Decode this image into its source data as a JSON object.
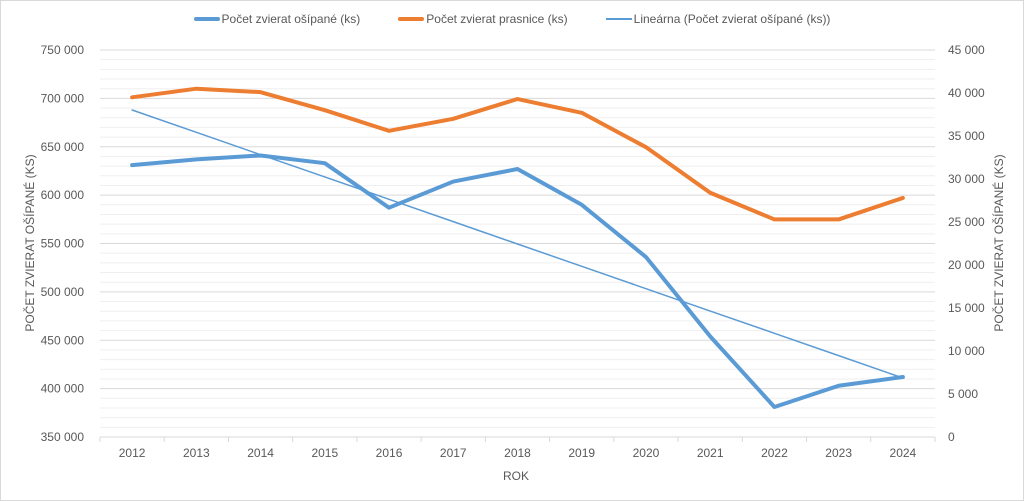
{
  "chart_data": {
    "type": "line",
    "title": "",
    "categories": [
      "2012",
      "2013",
      "2014",
      "2015",
      "2016",
      "2017",
      "2018",
      "2019",
      "2020",
      "2021",
      "2022",
      "2023",
      "2024"
    ],
    "xlabel": "ROK",
    "ylabel_left": "POČET ZVIERAT OŠÍPANÉ (KS)",
    "ylabel_right": "POČET ZVIERAT OŠÍPANÉ (KS)",
    "ylim_left": [
      350000,
      750000
    ],
    "ylim_right": [
      0,
      45000
    ],
    "yticks_left": [
      "350 000",
      "400 000",
      "450 000",
      "500 000",
      "550 000",
      "600 000",
      "650 000",
      "700 000",
      "750 000"
    ],
    "yticks_right": [
      "0",
      "5 000",
      "10 000",
      "15 000",
      "20 000",
      "25 000",
      "30 000",
      "35 000",
      "40 000",
      "45 000"
    ],
    "grid": true,
    "legend_position": "top",
    "series": [
      {
        "name": "Počet zvierat ošípané (ks)",
        "axis": "left",
        "color": "#5b9bd5",
        "values": [
          631000,
          637000,
          641000,
          633000,
          587000,
          614000,
          627000,
          590000,
          536000,
          454000,
          381000,
          403000,
          412000
        ]
      },
      {
        "name": "Počet zvierat prasnice (ks)",
        "axis": "right",
        "color": "#ed7d31",
        "values": [
          39500,
          40500,
          40100,
          38000,
          35600,
          37000,
          39300,
          37700,
          33700,
          28400,
          25300,
          25300,
          27800
        ]
      },
      {
        "name": "Lineárna (Počet zvierat ošípané (ks))",
        "axis": "left",
        "color": "#5b9bd5",
        "trendline": true,
        "values": [
          688000,
          664900,
          641800,
          618800,
          595700,
          572600,
          549500,
          526400,
          503300,
          480200,
          457200,
          434100,
          411000
        ]
      }
    ]
  }
}
